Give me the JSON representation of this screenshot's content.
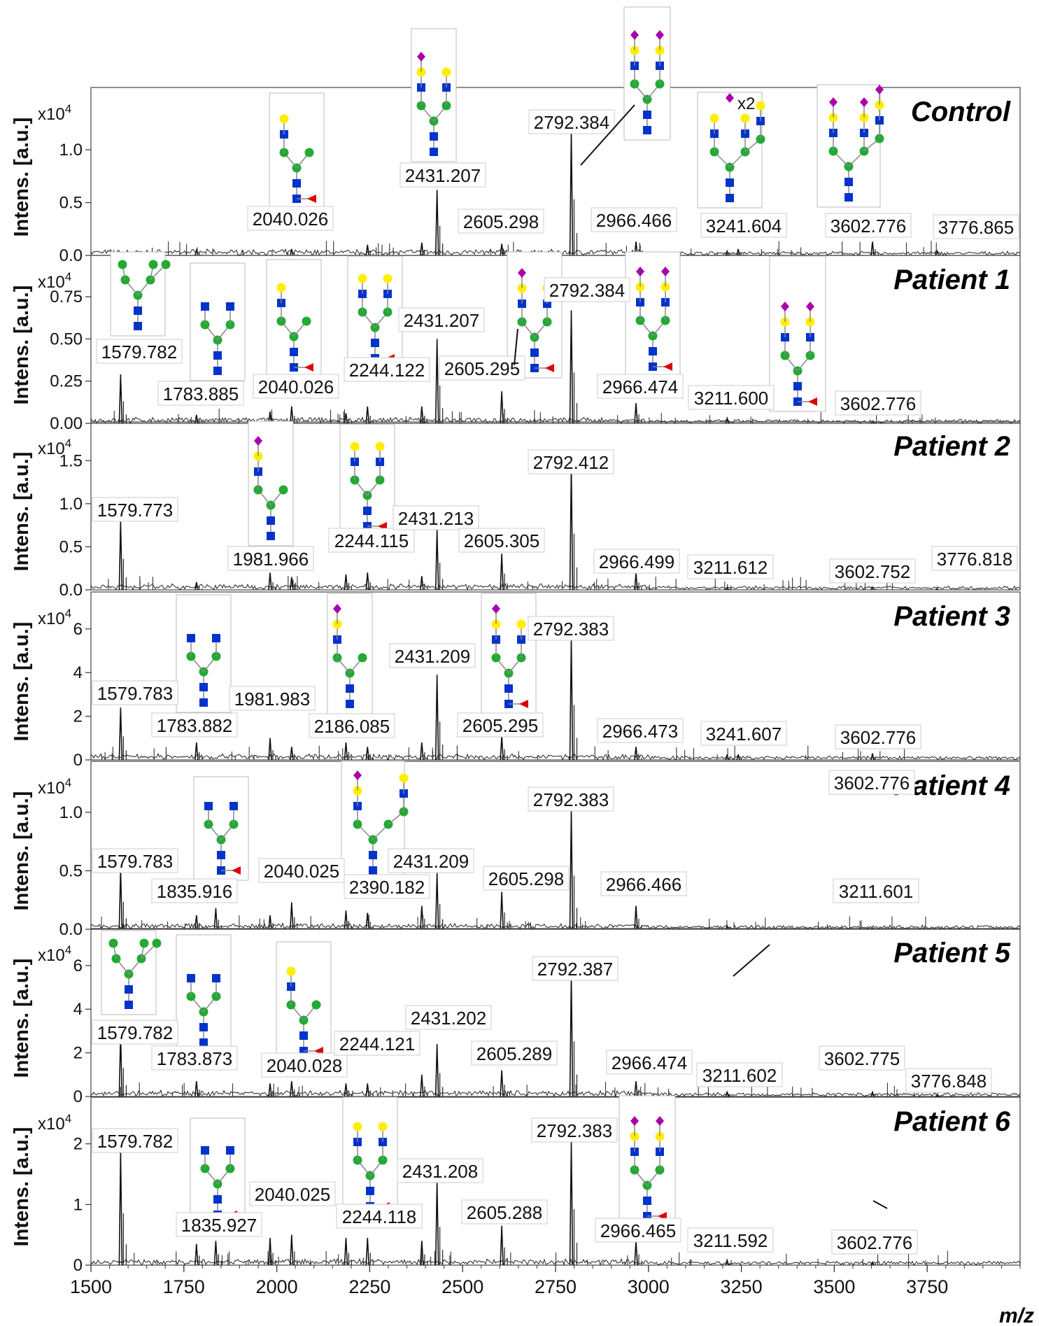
{
  "x_label": "m/z",
  "chart_data": {
    "type": "line",
    "x_label": "m/z",
    "xlim": [
      1500,
      4000
    ],
    "xticks": [
      1500,
      1750,
      2000,
      2250,
      2500,
      2750,
      3000,
      3250,
      3500,
      3750
    ],
    "y_label": "Intens. [a.u.]",
    "scale_label": "x10",
    "scale_exp": "4",
    "panels": [
      {
        "title": "Control",
        "ylim": [
          0,
          1.55
        ],
        "yticks": [
          "0.0",
          "0.5",
          "1.0"
        ],
        "peaks": [
          [
            1579.8,
            0.02
          ],
          [
            1783.9,
            0.05
          ],
          [
            2040.0,
            0.06
          ],
          [
            2244.1,
            0.1
          ],
          [
            2390.2,
            0.12
          ],
          [
            2431.2,
            0.62
          ],
          [
            2605.3,
            0.11
          ],
          [
            2792.4,
            1.18
          ],
          [
            2966.5,
            0.13
          ],
          [
            3211.6,
            0.04
          ],
          [
            3241.6,
            0.06
          ],
          [
            3602.8,
            0.13
          ],
          [
            3776.9,
            0.04
          ]
        ],
        "labels": [
          [
            2040.026,
            "2040.026"
          ],
          [
            2431.207,
            "2431.207"
          ],
          [
            2605.298,
            "2605.298"
          ],
          [
            2792.384,
            "2792.384"
          ],
          [
            2966.466,
            "2966.466"
          ],
          [
            3241.604,
            "3241.604"
          ],
          [
            3602.776,
            "3602.776"
          ],
          [
            3776.865,
            "3776.865"
          ]
        ]
      },
      {
        "title": "Patient 1",
        "ylim": [
          0,
          0.97
        ],
        "yticks": [
          "0.00",
          "0.25",
          "0.50",
          "0.75"
        ],
        "peaks": [
          [
            1579.8,
            0.29
          ],
          [
            1783.9,
            0.05
          ],
          [
            1981.97,
            0.07
          ],
          [
            2040.0,
            0.1
          ],
          [
            2186.1,
            0.06
          ],
          [
            2244.1,
            0.1
          ],
          [
            2390.2,
            0.1
          ],
          [
            2431.2,
            0.5
          ],
          [
            2605.3,
            0.19
          ],
          [
            2792.4,
            0.67
          ],
          [
            2966.5,
            0.12
          ],
          [
            3211.6,
            0.03
          ],
          [
            3602.8,
            0.01
          ]
        ],
        "labels": [
          [
            1579.782,
            "1579.782"
          ],
          [
            1783.885,
            "1783.885"
          ],
          [
            2040.026,
            "2040.026"
          ],
          [
            2244.122,
            "2244.122"
          ],
          [
            2431.207,
            "2431.207"
          ],
          [
            2605.295,
            "2605.295"
          ],
          [
            2792.384,
            "2792.384"
          ],
          [
            2966.474,
            "2966.474"
          ],
          [
            3211.6,
            "3211.600"
          ],
          [
            3602.776,
            "3602.776"
          ]
        ]
      },
      {
        "title": "Patient 2",
        "ylim": [
          0,
          1.9
        ],
        "yticks": [
          "0.0",
          "0.5",
          "1.0",
          "1.5"
        ],
        "peaks": [
          [
            1579.8,
            0.8
          ],
          [
            1783.9,
            0.09
          ],
          [
            1981.97,
            0.2
          ],
          [
            2040.0,
            0.15
          ],
          [
            2186.1,
            0.18
          ],
          [
            2244.1,
            0.2
          ],
          [
            2390.2,
            0.16
          ],
          [
            2431.2,
            0.7
          ],
          [
            2605.3,
            0.42
          ],
          [
            2792.4,
            1.45
          ],
          [
            2966.5,
            0.19
          ],
          [
            3211.6,
            0.03
          ],
          [
            3602.8,
            0.03
          ],
          [
            3776.8,
            0.01
          ]
        ],
        "labels": [
          [
            1579.773,
            "1579.773"
          ],
          [
            1981.966,
            "1981.966"
          ],
          [
            2244.115,
            "2244.115"
          ],
          [
            2431.213,
            "2431.213"
          ],
          [
            2605.305,
            "2605.305"
          ],
          [
            2792.412,
            "2792.412"
          ],
          [
            2966.499,
            "2966.499"
          ],
          [
            3211.612,
            "3211.612"
          ],
          [
            3602.752,
            "3602.752"
          ],
          [
            3776.818,
            "3776.818"
          ]
        ]
      },
      {
        "title": "Patient 3",
        "ylim": [
          0,
          7.5
        ],
        "yticks": [
          "0",
          "2",
          "4",
          "6"
        ],
        "peaks": [
          [
            1579.8,
            2.4
          ],
          [
            1783.9,
            0.8
          ],
          [
            1981.98,
            1.0
          ],
          [
            2040.0,
            0.6
          ],
          [
            2186.1,
            0.8
          ],
          [
            2244.1,
            0.6
          ],
          [
            2390.2,
            0.8
          ],
          [
            2431.2,
            3.9
          ],
          [
            2605.3,
            1.1
          ],
          [
            2792.4,
            5.6
          ],
          [
            2966.5,
            0.6
          ],
          [
            3211.6,
            0.25
          ],
          [
            3241.6,
            0.25
          ],
          [
            3602.8,
            0.3
          ]
        ],
        "labels": [
          [
            1579.783,
            "1579.783"
          ],
          [
            1783.882,
            "1783.882"
          ],
          [
            1981.983,
            "1981.983"
          ],
          [
            2186.085,
            "2186.085"
          ],
          [
            2431.209,
            "2431.209"
          ],
          [
            2605.295,
            "2605.295"
          ],
          [
            2792.383,
            "2792.383"
          ],
          [
            2966.473,
            "2966.473"
          ],
          [
            3241.607,
            "3241.607"
          ],
          [
            3602.776,
            "3602.776"
          ]
        ]
      },
      {
        "title": "Patient 4",
        "ylim": [
          0,
          1.4
        ],
        "yticks": [
          "0.0",
          "0.5",
          "1.0"
        ],
        "peaks": [
          [
            1579.8,
            0.52
          ],
          [
            1783.9,
            0.12
          ],
          [
            1835.9,
            0.18
          ],
          [
            1981.97,
            0.12
          ],
          [
            2040.0,
            0.23
          ],
          [
            2186.1,
            0.16
          ],
          [
            2244.1,
            0.14
          ],
          [
            2390.2,
            0.2
          ],
          [
            2431.2,
            0.48
          ],
          [
            2605.3,
            0.32
          ],
          [
            2792.4,
            1.02
          ],
          [
            2966.5,
            0.2
          ],
          [
            3211.6,
            0.03
          ],
          [
            3602.8,
            0.01
          ]
        ],
        "labels": [
          [
            1579.783,
            "1579.783"
          ],
          [
            1835.916,
            "1835.916"
          ],
          [
            2040.025,
            "2040.025"
          ],
          [
            2390.182,
            "2390.182"
          ],
          [
            2431.209,
            "2431.209"
          ],
          [
            2605.298,
            "2605.298"
          ],
          [
            2792.383,
            "2792.383"
          ],
          [
            2966.466,
            "2966.466"
          ],
          [
            3211.601,
            "3211.601"
          ],
          [
            3602.776,
            "3602.776"
          ]
        ]
      },
      {
        "title": "Patient 5",
        "ylim": [
          0,
          7.5
        ],
        "yticks": [
          "0",
          "2",
          "4",
          "6"
        ],
        "peaks": [
          [
            1579.8,
            2.9
          ],
          [
            1783.9,
            0.7
          ],
          [
            1981.97,
            0.6
          ],
          [
            2040.0,
            0.7
          ],
          [
            2186.1,
            0.6
          ],
          [
            2244.1,
            0.6
          ],
          [
            2390.2,
            1.0
          ],
          [
            2431.2,
            2.4
          ],
          [
            2605.3,
            1.2
          ],
          [
            2792.4,
            5.6
          ],
          [
            2966.5,
            0.7
          ],
          [
            3211.6,
            0.2
          ],
          [
            3602.8,
            0.2
          ],
          [
            3776.8,
            0.05
          ]
        ],
        "labels": [
          [
            1579.782,
            "1579.782"
          ],
          [
            1783.873,
            "1783.873"
          ],
          [
            2040.028,
            "2040.028"
          ],
          [
            2244.121,
            "2244.121"
          ],
          [
            2431.202,
            "2431.202"
          ],
          [
            2605.289,
            "2605.289"
          ],
          [
            2792.387,
            "2792.387"
          ],
          [
            2966.474,
            "2966.474"
          ],
          [
            3211.602,
            "3211.602"
          ],
          [
            3602.775,
            "3602.775"
          ],
          [
            3776.848,
            "3776.848"
          ]
        ]
      },
      {
        "title": "Patient 6",
        "ylim": [
          0,
          2.7
        ],
        "yticks": [
          "0",
          "1",
          "2"
        ],
        "peaks": [
          [
            1579.8,
            1.9
          ],
          [
            1783.9,
            0.35
          ],
          [
            1835.9,
            0.4
          ],
          [
            1981.97,
            0.45
          ],
          [
            2040.0,
            0.5
          ],
          [
            2186.1,
            0.45
          ],
          [
            2244.1,
            0.45
          ],
          [
            2390.2,
            0.4
          ],
          [
            2431.2,
            1.4
          ],
          [
            2605.3,
            0.65
          ],
          [
            2792.4,
            2.05
          ],
          [
            2966.5,
            0.4
          ],
          [
            3211.6,
            0.08
          ],
          [
            3602.8,
            0.05
          ]
        ],
        "labels": [
          [
            1579.782,
            "1579.782"
          ],
          [
            1835.927,
            "1835.927"
          ],
          [
            2040.025,
            "2040.025"
          ],
          [
            2244.118,
            "2244.118"
          ],
          [
            2431.208,
            "2431.208"
          ],
          [
            2605.288,
            "2605.288"
          ],
          [
            2792.383,
            "2792.383"
          ],
          [
            2966.465,
            "2966.465"
          ],
          [
            3211.592,
            "3211.592"
          ],
          [
            3602.776,
            "3602.776"
          ]
        ]
      }
    ]
  },
  "glycan_annotations": {
    "colors": {
      "gal": "#ffee00",
      "glcnac": "#0033cc",
      "man": "#22aa33",
      "neuac": "#aa00aa",
      "fuc": "#dd0000"
    },
    "extra_text": "x2"
  }
}
